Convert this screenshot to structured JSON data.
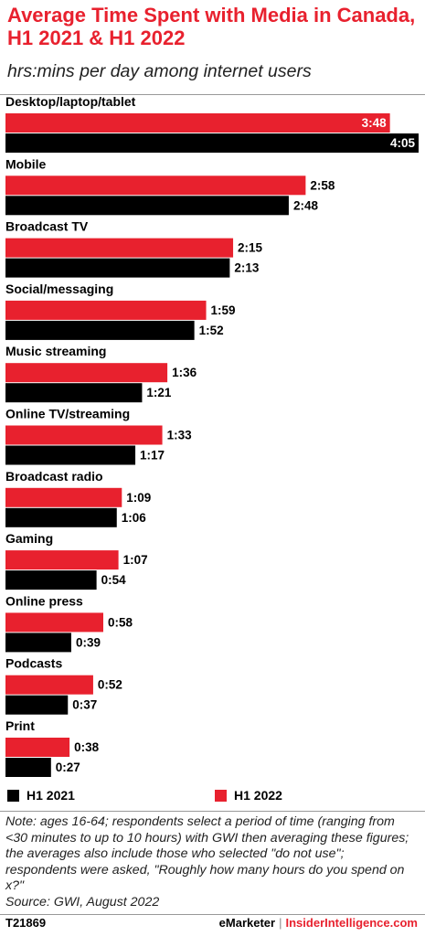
{
  "chart_data": {
    "type": "bar",
    "orientation": "horizontal",
    "title": "Average Time Spent with Media in Canada, H1 2021 & H1 2022",
    "subtitle": "hrs:mins per day among internet users",
    "categories": [
      "Desktop/laptop/tablet",
      "Mobile",
      "Broadcast TV",
      "Social/messaging",
      "Music streaming",
      "Online TV/streaming",
      "Broadcast radio",
      "Gaming",
      "Online press",
      "Podcasts",
      "Print"
    ],
    "series": [
      {
        "name": "H1 2022",
        "color": "#e8212e",
        "values": [
          228,
          178,
          135,
          119,
          96,
          93,
          69,
          67,
          58,
          52,
          38
        ],
        "labels": [
          "3:48",
          "2:58",
          "2:15",
          "1:59",
          "1:36",
          "1:33",
          "1:09",
          "1:07",
          "0:58",
          "0:52",
          "0:38"
        ]
      },
      {
        "name": "H1 2021",
        "color": "#000000",
        "values": [
          245,
          168,
          133,
          112,
          81,
          77,
          66,
          54,
          39,
          37,
          27
        ],
        "labels": [
          "4:05",
          "2:48",
          "2:13",
          "1:52",
          "1:21",
          "1:17",
          "1:06",
          "0:54",
          "0:39",
          "0:37",
          "0:27"
        ]
      }
    ],
    "unit": "minutes",
    "xlim": [
      0,
      245
    ],
    "legend": {
      "position": "bottom",
      "order": [
        "H1 2021",
        "H1 2022"
      ]
    },
    "grid": false
  },
  "note": "Note: ages 16-64; respondents select a period of time (ranging from <30 minutes to up to 10 hours) with GWI then averaging these figures; the averages also include those who selected \"do not use\"; respondents were asked, \"Roughly how many hours do you spend on x?\"",
  "source": "Source:  GWI, August 2022",
  "footer": {
    "id": "T21869",
    "brand_emarketer": "eMarketer",
    "brand_separator": "|",
    "brand_insider": "InsiderIntelligence.com"
  }
}
